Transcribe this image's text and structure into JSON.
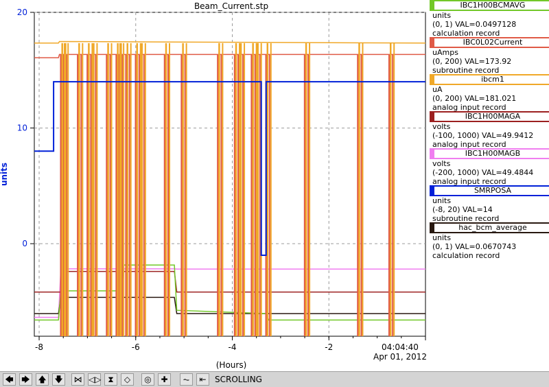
{
  "chart_data": {
    "type": "line",
    "title": "Beam_Current.stp",
    "ylabel": "units",
    "xlabel": "(Hours)",
    "ylim": [
      -8,
      20
    ],
    "xlim": [
      -8.1,
      0
    ],
    "yticks": [
      "20",
      "10",
      "0"
    ],
    "ytick_values": [
      20,
      10,
      0
    ],
    "xticks": [
      "-8",
      "-6",
      "-4",
      "-2"
    ],
    "xtick_values": [
      -8,
      -6,
      -4,
      -2
    ],
    "x_end_time": "04:04:40",
    "x_end_date": "Apr 01, 2012",
    "grid": true,
    "series": [
      {
        "name": "IBC1H00BCMAVG",
        "color": "#72c828",
        "units": "units",
        "range": "(0, 1)",
        "value": "VAL=0.0497128",
        "rtype": "calculation record",
        "scale": [
          0,
          1
        ],
        "x": [
          -8.1,
          -7.6,
          -7.55,
          -6.3,
          -6.25,
          -5.2,
          -5.15,
          -3.3,
          -3.25,
          0
        ],
        "y": [
          0.05,
          0.05,
          0.14,
          0.14,
          0.22,
          0.22,
          0.08,
          0.07,
          0.05,
          0.05
        ]
      },
      {
        "name": "IBC0L02Current",
        "color": "#e05a46",
        "units": "uAmps",
        "range": "(0, 200)",
        "value": "VAL=173.92",
        "rtype": "subroutine record",
        "scale": [
          0,
          200
        ],
        "x": [
          -8.1,
          -7.6,
          -7.58,
          0
        ],
        "y": [
          172,
          172,
          174,
          174
        ]
      },
      {
        "name": "ibcm1",
        "color": "#f0a828",
        "units": "uA",
        "range": "(0, 200)",
        "value": "VAL=181.021",
        "rtype": "analog input record",
        "scale": [
          0,
          200
        ],
        "x": [
          -8.1,
          -7.6,
          -7.58,
          0
        ],
        "y": [
          181,
          181,
          182,
          181
        ]
      },
      {
        "name": "IBC1H00MAGA",
        "color": "#9c2020",
        "units": "volts",
        "range": "(-100, 1000)",
        "value": "VAL=49.9412",
        "rtype": "analog input record",
        "scale": [
          -100,
          1000
        ],
        "x": [
          -8.1,
          -7.55,
          -7.5,
          -5.2,
          -5.15,
          0
        ],
        "y": [
          50,
          50,
          120,
          120,
          50,
          50
        ]
      },
      {
        "name": "IBC1H00MAGB",
        "color": "#f07ef0",
        "units": "volts",
        "range": "(-200, 1000)",
        "value": "VAL=49.4844",
        "rtype": "analog input record",
        "scale": [
          -200,
          1000
        ],
        "x": [
          -8.1,
          -7.6,
          -7.55,
          -5.2,
          -5.15,
          0
        ],
        "y": [
          -130,
          -130,
          50,
          50,
          49,
          49
        ]
      },
      {
        "name": "SMRPOSA",
        "color": "#0020d8",
        "units": "units",
        "range": "(-8, 20)",
        "value": "VAL=14",
        "rtype": "subroutine record",
        "scale": [
          -8,
          20
        ],
        "x": [
          -8.1,
          -7.7,
          -7.7,
          -3.4,
          -3.4,
          -3.3,
          -3.3,
          0
        ],
        "y": [
          8,
          8,
          14,
          14,
          -1,
          -1,
          14,
          14
        ]
      },
      {
        "name": "hac_bcm_average",
        "color": "#281810",
        "units": "units",
        "range": "(0, 1)",
        "value": "VAL=0.0670743",
        "rtype": "calculation record",
        "scale": [
          0,
          1
        ],
        "x": [
          -8.1,
          -7.6,
          -7.55,
          -5.2,
          -5.15,
          0
        ],
        "y": [
          0.07,
          0.07,
          0.12,
          0.12,
          0.07,
          0.07
        ]
      }
    ],
    "beam_trips_hours": [
      -7.55,
      -7.5,
      -7.2,
      -7.0,
      -6.9,
      -6.6,
      -6.4,
      -6.35,
      -6.2,
      -6.0,
      -5.9,
      -5.4,
      -5.05,
      -4.3,
      -3.95,
      -3.85,
      -3.6,
      -3.5,
      -3.3,
      -2.5,
      -1.4,
      -0.75
    ]
  },
  "toolbar": {
    "status": "SCROLLING",
    "buttons": [
      {
        "icon": "arrow-left-icon",
        "glyph": "🡄"
      },
      {
        "icon": "arrow-right-icon",
        "glyph": "🡆"
      },
      {
        "icon": "arrow-up-icon",
        "glyph": "🡅"
      },
      {
        "icon": "arrow-down-icon",
        "glyph": "🡇"
      },
      {
        "icon": "zoom-in-horizontal-icon",
        "glyph": "⋈"
      },
      {
        "icon": "zoom-out-horizontal-icon",
        "glyph": "◁▷"
      },
      {
        "icon": "zoom-in-vertical-icon",
        "glyph": "⧗"
      },
      {
        "icon": "zoom-out-vertical-icon",
        "glyph": "◇"
      },
      {
        "icon": "autoscale-icon",
        "glyph": "◎"
      },
      {
        "icon": "reset-zoom-icon",
        "glyph": "✚"
      },
      {
        "icon": "scroll-mode-icon",
        "glyph": "⏦"
      },
      {
        "icon": "go-to-end-icon",
        "glyph": "⇤"
      }
    ]
  }
}
